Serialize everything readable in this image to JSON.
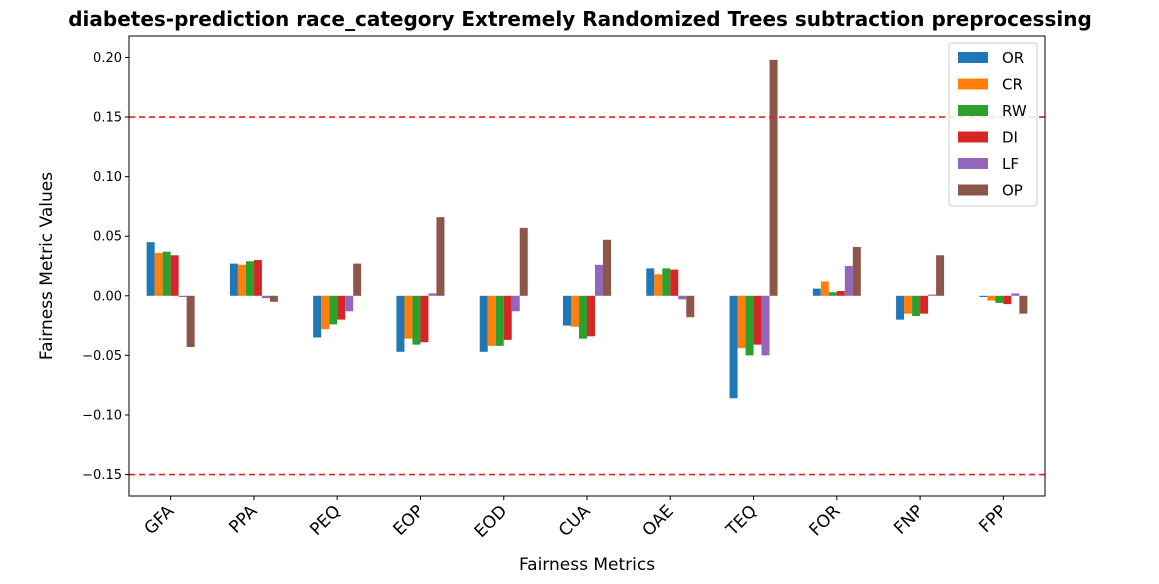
{
  "chart_data": {
    "type": "bar",
    "title": "diabetes-prediction race_category Extremely Randomized Trees subtraction preprocessing",
    "xlabel": "Fairness Metrics",
    "ylabel": "Fairness Metric Values",
    "ylim": [
      -0.168,
      0.218
    ],
    "yticks": [
      -0.15,
      -0.1,
      -0.05,
      0.0,
      0.05,
      0.1,
      0.15,
      0.2
    ],
    "ytick_labels": [
      "−0.15",
      "−0.10",
      "−0.05",
      "0.00",
      "0.05",
      "0.10",
      "0.15",
      "0.20"
    ],
    "categories": [
      "GFA",
      "PPA",
      "PEQ",
      "EOP",
      "EOD",
      "CUA",
      "OAE",
      "TEQ",
      "FOR",
      "FNP",
      "FPP"
    ],
    "reference_lines": [
      0.15,
      -0.15
    ],
    "reference_line_color": "#e8211d",
    "grid": false,
    "legend_position": "top-right",
    "series": [
      {
        "name": "OR",
        "color": "#1f77b4",
        "values": [
          0.045,
          0.027,
          -0.035,
          -0.047,
          -0.047,
          -0.025,
          0.023,
          -0.086,
          0.006,
          -0.02,
          -0.001
        ]
      },
      {
        "name": "CR",
        "color": "#ff7f0e",
        "values": [
          0.036,
          0.026,
          -0.028,
          -0.036,
          -0.042,
          -0.026,
          0.018,
          -0.044,
          0.012,
          -0.015,
          -0.004
        ]
      },
      {
        "name": "RW",
        "color": "#2ca02c",
        "values": [
          0.037,
          0.029,
          -0.024,
          -0.041,
          -0.042,
          -0.036,
          0.023,
          -0.05,
          0.003,
          -0.017,
          -0.006
        ]
      },
      {
        "name": "DI",
        "color": "#d62728",
        "values": [
          0.034,
          0.03,
          -0.02,
          -0.039,
          -0.037,
          -0.034,
          0.022,
          -0.041,
          0.004,
          -0.015,
          -0.007
        ]
      },
      {
        "name": "LF",
        "color": "#9467bd",
        "values": [
          -0.001,
          -0.002,
          -0.013,
          0.002,
          -0.013,
          0.026,
          -0.003,
          -0.05,
          0.025,
          0.001,
          0.002
        ]
      },
      {
        "name": "OP",
        "color": "#8c564b",
        "values": [
          -0.043,
          -0.005,
          0.027,
          0.066,
          0.057,
          0.047,
          -0.018,
          0.198,
          0.041,
          0.034,
          -0.015
        ]
      }
    ]
  }
}
